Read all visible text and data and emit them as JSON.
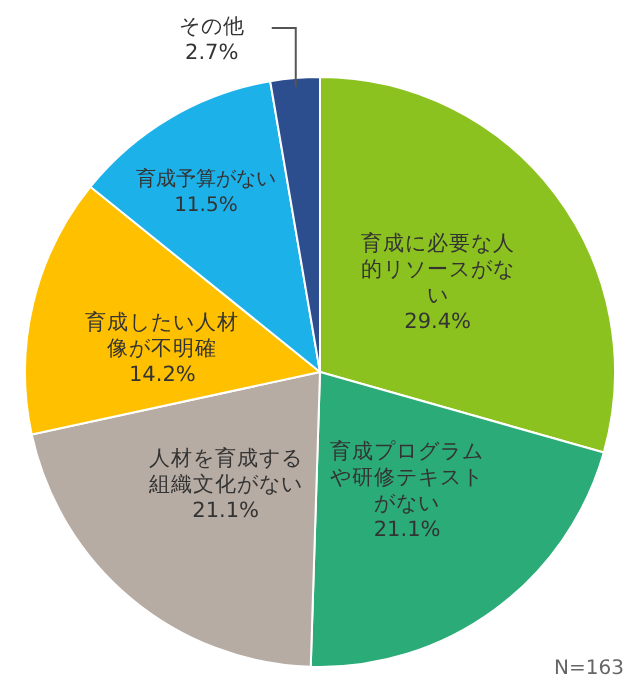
{
  "chart_data": {
    "type": "pie",
    "categories": [
      "育成に必要な人的リソースがない",
      "育成プログラムや研修テキストがない",
      "人材を育成する組織文化がない",
      "育成したい人材像が不明確",
      "育成予算がない",
      "その他"
    ],
    "values": [
      29.4,
      21.1,
      21.1,
      14.2,
      11.5,
      2.7
    ],
    "value_labels": [
      "29.4%",
      "21.1%",
      "21.1%",
      "14.2%",
      "11.5%",
      "2.7%"
    ],
    "colors": [
      "#8cc21f",
      "#2bab78",
      "#b7aca3",
      "#ffc000",
      "#1db1ea",
      "#2d4e8e"
    ],
    "annotations": [
      "N=163"
    ],
    "legend": false
  }
}
